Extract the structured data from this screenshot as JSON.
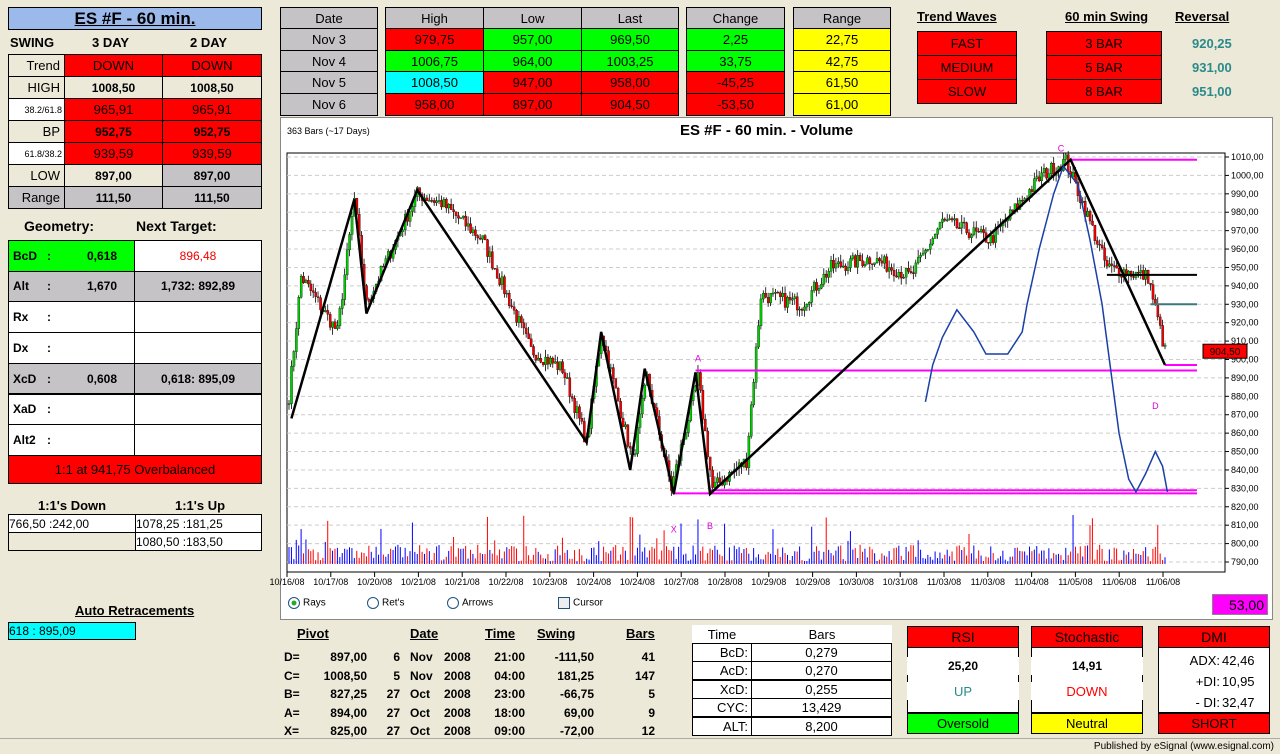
{
  "title": "ES #F - 60 min.",
  "swing": {
    "label": "SWING",
    "cols": [
      "3 DAY",
      "2 DAY"
    ],
    "rows": [
      {
        "label": "Trend",
        "v": [
          "DOWN",
          "DOWN"
        ]
      },
      {
        "label": "HIGH",
        "v": [
          "1008,50",
          "1008,50"
        ]
      },
      {
        "label": "38.2/61.8",
        "v": [
          "965,91",
          "965,91"
        ]
      },
      {
        "label": "BP",
        "v": [
          "952,75",
          "952,75"
        ]
      },
      {
        "label": "61.8/38.2",
        "v": [
          "939,59",
          "939,59"
        ]
      },
      {
        "label": "LOW",
        "v": [
          "897,00",
          "897,00"
        ]
      },
      {
        "label": "Range",
        "v": [
          "111,50",
          "111,50"
        ]
      }
    ]
  },
  "geometry": {
    "label": "Geometry:",
    "next_label": "Next Target:",
    "rows": [
      {
        "label": "BcD",
        "sep": ":",
        "v": "0,618",
        "t": "896,48"
      },
      {
        "label": "Alt",
        "sep": ":",
        "v": "1,670",
        "t": "1,732: 892,89"
      },
      {
        "label": "Rx",
        "sep": ":",
        "v": "",
        "t": ""
      },
      {
        "label": "Dx",
        "sep": ":",
        "v": "",
        "t": ""
      },
      {
        "label": "XcD",
        "sep": ":",
        "v": "0,608",
        "t": "0,618: 895,09"
      },
      {
        "label": "XaD",
        "sep": ":",
        "v": "",
        "t": ""
      },
      {
        "label": "Alt2",
        "sep": ":",
        "v": "",
        "t": ""
      }
    ],
    "banner": "1:1 at 941,75 Overbalanced"
  },
  "ones": {
    "down_label": "1:1's Down",
    "up_label": "1:1's Up",
    "down": [
      "766,50 :242,00",
      ""
    ],
    "up": [
      "1078,25 :181,25",
      "1080,50 :183,50"
    ]
  },
  "auto_retr": {
    "label": "Auto Retracements",
    "value": "618 : 895,09"
  },
  "daily": {
    "headers": [
      "Date",
      "High",
      "Low",
      "Last",
      "Change",
      "Range"
    ],
    "rows": [
      [
        "Nov  3",
        "979,75",
        "957,00",
        "969,50",
        "2,25",
        "22,75"
      ],
      [
        "Nov  4",
        "1006,75",
        "964,00",
        "1003,25",
        "33,75",
        "42,75"
      ],
      [
        "Nov  5",
        "1008,50",
        "947,00",
        "958,00",
        "-45,25",
        "61,50"
      ],
      [
        "Nov  6",
        "958,00",
        "897,00",
        "904,50",
        "-53,50",
        "61,00"
      ]
    ]
  },
  "trend_waves": {
    "label": "Trend Waves",
    "items": [
      "FAST",
      "MEDIUM",
      "SLOW"
    ]
  },
  "swing60": {
    "label": "60 min Swing",
    "items": [
      "3 BAR",
      "5 BAR",
      "8 BAR"
    ]
  },
  "reversal": {
    "label": "Reversal",
    "items": [
      "920,25",
      "931,00",
      "951,00"
    ]
  },
  "chart_data": {
    "type": "candlestick",
    "title": "ES #F - 60 min. - Volume",
    "subtitle": "363 Bars (~17 Days)",
    "bars": 363,
    "ylim": [
      785,
      1015
    ],
    "yticks": [
      1010,
      1000,
      990,
      980,
      970,
      960,
      950,
      940,
      930,
      920,
      910,
      900,
      890,
      880,
      870,
      860,
      850,
      840,
      830,
      820,
      810,
      800,
      790
    ],
    "ytick_labels": [
      "1010,00",
      "1000,00",
      "990,00",
      "980,00",
      "970,00",
      "960,00",
      "950,00",
      "940,00",
      "930,00",
      "920,00",
      "910,00",
      "900,00",
      "890,00",
      "880,00",
      "870,00",
      "860,00",
      "850,00",
      "840,00",
      "830,00",
      "820,00",
      "810,00",
      "800,00",
      "790,00"
    ],
    "xlabels": [
      "10/16/08",
      "10/17/08",
      "10/20/08",
      "10/21/08",
      "10/21/08",
      "10/22/08",
      "10/23/08",
      "10/24/08",
      "10/24/08",
      "10/27/08",
      "10/28/08",
      "10/29/08",
      "10/29/08",
      "10/30/08",
      "10/31/08",
      "11/03/08",
      "11/03/08",
      "11/04/08",
      "11/05/08",
      "11/06/08",
      "11/06/08"
    ],
    "price_path": [
      [
        0,
        880
      ],
      [
        5,
        945
      ],
      [
        20,
        915
      ],
      [
        27,
        987
      ],
      [
        32,
        930
      ],
      [
        53,
        990
      ],
      [
        63,
        985
      ],
      [
        80,
        965
      ],
      [
        100,
        905
      ],
      [
        113,
        895
      ],
      [
        123,
        855
      ],
      [
        129,
        915
      ],
      [
        142,
        845
      ],
      [
        148,
        890
      ],
      [
        158,
        830
      ],
      [
        169,
        890
      ],
      [
        175,
        830
      ],
      [
        189,
        845
      ],
      [
        195,
        935
      ],
      [
        212,
        930
      ],
      [
        224,
        950
      ],
      [
        241,
        955
      ],
      [
        257,
        945
      ],
      [
        270,
        975
      ],
      [
        290,
        965
      ],
      [
        311,
        1000
      ],
      [
        321,
        1008
      ],
      [
        328,
        985
      ],
      [
        338,
        950
      ],
      [
        355,
        945
      ],
      [
        362,
        904.5
      ]
    ],
    "zigzag": [
      [
        1,
        868
      ],
      [
        27,
        987
      ],
      [
        32,
        925
      ],
      [
        53,
        992
      ],
      [
        123,
        855
      ],
      [
        129,
        915
      ],
      [
        141,
        840
      ],
      [
        147,
        895
      ],
      [
        159,
        827
      ],
      [
        168,
        893
      ],
      [
        174,
        827
      ],
      [
        323,
        1008.5
      ],
      [
        362,
        897
      ]
    ],
    "levels": [
      {
        "price": 1008.5,
        "from": 323,
        "color": "#ff00ff"
      },
      {
        "price": 894,
        "from": 168,
        "color": "#ff00ff"
      },
      {
        "price": 897,
        "from": 362,
        "color": "#ff00ff"
      },
      {
        "price": 827.25,
        "from": 159,
        "color": "#ff00ff"
      },
      {
        "price": 829,
        "from": 174,
        "color": "#ff00ff"
      },
      {
        "price": 946,
        "from": 338,
        "color": "#000000"
      },
      {
        "price": 930,
        "from": 356,
        "color": "#3a7a7a"
      }
    ],
    "indicator": [
      [
        263,
        877
      ],
      [
        266,
        897
      ],
      [
        270,
        912
      ],
      [
        276,
        927
      ],
      [
        283,
        915
      ],
      [
        288,
        903
      ],
      [
        297,
        903
      ],
      [
        303,
        915
      ],
      [
        305,
        930
      ],
      [
        310,
        960
      ],
      [
        316,
        990
      ],
      [
        320,
        1005
      ],
      [
        326,
        995
      ],
      [
        331,
        965
      ],
      [
        336,
        930
      ],
      [
        339,
        900
      ],
      [
        343,
        860
      ],
      [
        347,
        835
      ],
      [
        350,
        828
      ],
      [
        354,
        838
      ],
      [
        358,
        850
      ],
      [
        361,
        842
      ],
      [
        363,
        828
      ]
    ],
    "pattern_labels": [
      {
        "t": "C",
        "bar": 319,
        "price": 1013
      },
      {
        "t": "A",
        "bar": 169,
        "price": 899
      },
      {
        "t": "D",
        "bar": 358,
        "price": 873
      },
      {
        "t": "X",
        "bar": 159,
        "price": 806
      },
      {
        "t": "B",
        "bar": 174,
        "price": 808
      }
    ],
    "last_price": "904,50",
    "volume_readout": "53,00"
  },
  "radio": {
    "items": [
      "Rays",
      "Ret's",
      "Arrows"
    ],
    "selected": "Rays",
    "cursor": "Cursor"
  },
  "pivots": {
    "headers": [
      "Pivot",
      "Date",
      "Time",
      "Swing",
      "Bars"
    ],
    "rows": [
      [
        "D=",
        "897,00",
        "6",
        "Nov",
        "2008",
        "21:00",
        "-111,50",
        "41"
      ],
      [
        "C=",
        "1008,50",
        "5",
        "Nov",
        "2008",
        "04:00",
        "181,25",
        "147"
      ],
      [
        "B=",
        "827,25",
        "27",
        "Oct",
        "2008",
        "23:00",
        "-66,75",
        "5"
      ],
      [
        "A=",
        "894,00",
        "27",
        "Oct",
        "2008",
        "18:00",
        "69,00",
        "9"
      ],
      [
        "X=",
        "825,00",
        "27",
        "Oct",
        "2008",
        "09:00",
        "-72,00",
        "12"
      ]
    ]
  },
  "timebars": {
    "headers": [
      "Time",
      "Bars"
    ],
    "rows": [
      [
        "BcD:",
        "0,279"
      ],
      [
        "AcD:",
        "0,270"
      ],
      [
        "XcD:",
        "0,255"
      ],
      [
        "CYC:",
        "13,429"
      ],
      [
        "ALT:",
        "8,200"
      ]
    ]
  },
  "rsi": {
    "label": "RSI",
    "value": "25,20",
    "dir": "UP",
    "status": "Oversold"
  },
  "stoch": {
    "label": "Stochastic",
    "value": "14,91",
    "dir": "DOWN",
    "status": "Neutral"
  },
  "dmi": {
    "label": "DMI",
    "adx_l": "ADX:",
    "adx": "42,46",
    "pdi_l": "+DI:",
    "pdi": "10,95",
    "mdi_l": "- DI:",
    "mdi": "32,47",
    "status": "SHORT"
  },
  "status_bar": "Published by eSignal (www.esignal.com)"
}
